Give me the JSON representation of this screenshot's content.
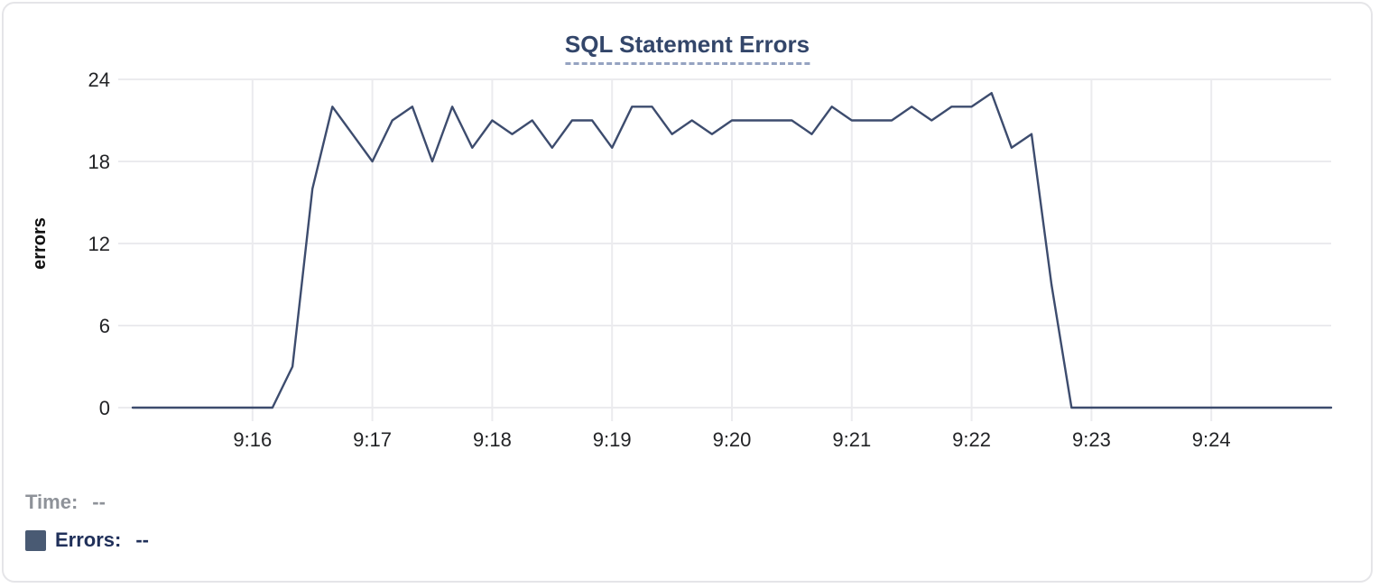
{
  "chart_data": {
    "type": "line",
    "title": "SQL Statement Errors",
    "xlabel": "",
    "ylabel": "errors",
    "ylim": [
      0,
      24
    ],
    "y_ticks": [
      0,
      6,
      12,
      18,
      24
    ],
    "x_ticks": [
      "9:16",
      "9:17",
      "9:18",
      "9:19",
      "9:20",
      "9:21",
      "9:22",
      "9:23",
      "9:24"
    ],
    "x_range": [
      "9:15:00",
      "9:25:00"
    ],
    "grid": true,
    "grid_color": "#ebebee",
    "line_color": "#3d4c6e",
    "legend_position": "bottom-left",
    "series": [
      {
        "name": "Errors",
        "times": [
          "9:15:00",
          "9:15:10",
          "9:15:20",
          "9:15:30",
          "9:15:40",
          "9:15:50",
          "9:16:00",
          "9:16:10",
          "9:16:20",
          "9:16:30",
          "9:16:40",
          "9:16:50",
          "9:17:00",
          "9:17:10",
          "9:17:20",
          "9:17:30",
          "9:17:40",
          "9:17:50",
          "9:18:00",
          "9:18:10",
          "9:18:20",
          "9:18:30",
          "9:18:40",
          "9:18:50",
          "9:19:00",
          "9:19:10",
          "9:19:20",
          "9:19:30",
          "9:19:40",
          "9:19:50",
          "9:20:00",
          "9:20:10",
          "9:20:20",
          "9:20:30",
          "9:20:40",
          "9:20:50",
          "9:21:00",
          "9:21:10",
          "9:21:20",
          "9:21:30",
          "9:21:40",
          "9:21:50",
          "9:22:00",
          "9:22:10",
          "9:22:20",
          "9:22:30",
          "9:22:40",
          "9:22:50",
          "9:23:00",
          "9:23:10",
          "9:23:20",
          "9:23:30",
          "9:23:40",
          "9:23:50",
          "9:24:00",
          "9:24:10",
          "9:24:20",
          "9:24:30",
          "9:24:40",
          "9:24:50",
          "9:25:00"
        ],
        "values": [
          0,
          0,
          0,
          0,
          0,
          0,
          0,
          0,
          3,
          16,
          22,
          20,
          18,
          21,
          22,
          18,
          22,
          19,
          21,
          20,
          21,
          19,
          21,
          21,
          19,
          22,
          22,
          20,
          21,
          20,
          21,
          21,
          21,
          21,
          20,
          22,
          21,
          21,
          21,
          22,
          21,
          22,
          22,
          23,
          19,
          20,
          9,
          0,
          0,
          0,
          0,
          0,
          0,
          0,
          0,
          0,
          0,
          0,
          0,
          0,
          0
        ]
      }
    ]
  },
  "tooltip_legend": {
    "time_label": "Time:",
    "time_value": "--",
    "errors_label": "Errors:",
    "errors_value": "--",
    "swatch_color": "#495a73"
  },
  "colors": {
    "title": "#33466a",
    "title_underline": "#95a3c1",
    "card_border": "#e5e5e8",
    "axis_text": "#222326",
    "legend_muted": "#8e9299",
    "legend_accent": "#20305a"
  }
}
